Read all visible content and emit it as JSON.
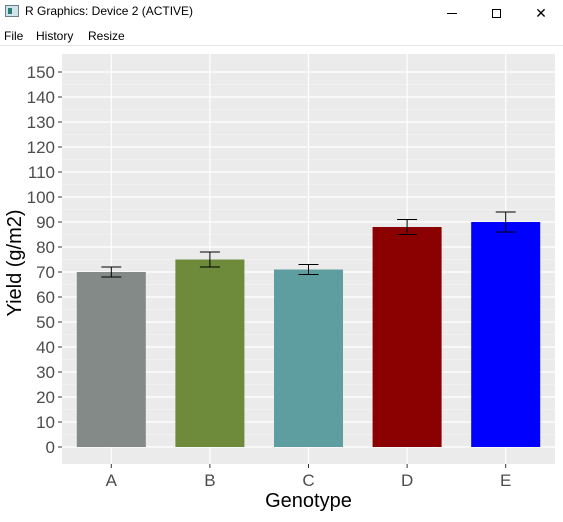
{
  "window": {
    "title": "R Graphics: Device 2 (ACTIVE)",
    "minimize_symbol": "",
    "maximize_symbol": "",
    "close_symbol": "✕"
  },
  "menu": {
    "items": [
      "File",
      "History",
      "Resize"
    ]
  },
  "chart_data": {
    "type": "bar",
    "categories": [
      "A",
      "B",
      "C",
      "D",
      "E"
    ],
    "values": [
      70,
      75,
      71,
      88,
      90
    ],
    "error_bars": [
      {
        "low": 68,
        "high": 72
      },
      {
        "low": 72,
        "high": 78
      },
      {
        "low": 69,
        "high": 73
      },
      {
        "low": 85,
        "high": 91
      },
      {
        "low": 86,
        "high": 94
      }
    ],
    "colors": [
      "#848a87",
      "#6e8a3b",
      "#5f9ea0",
      "#8b0000",
      "#0000ff"
    ],
    "xlabel": "Genotype",
    "ylabel": "Yield (g/m2)",
    "ylim": [
      0,
      150
    ],
    "yticks": [
      0,
      10,
      20,
      30,
      40,
      50,
      60,
      70,
      80,
      90,
      100,
      110,
      120,
      130,
      140,
      150
    ],
    "panel_background": "#ebebeb",
    "grid": true,
    "legend": "none"
  }
}
